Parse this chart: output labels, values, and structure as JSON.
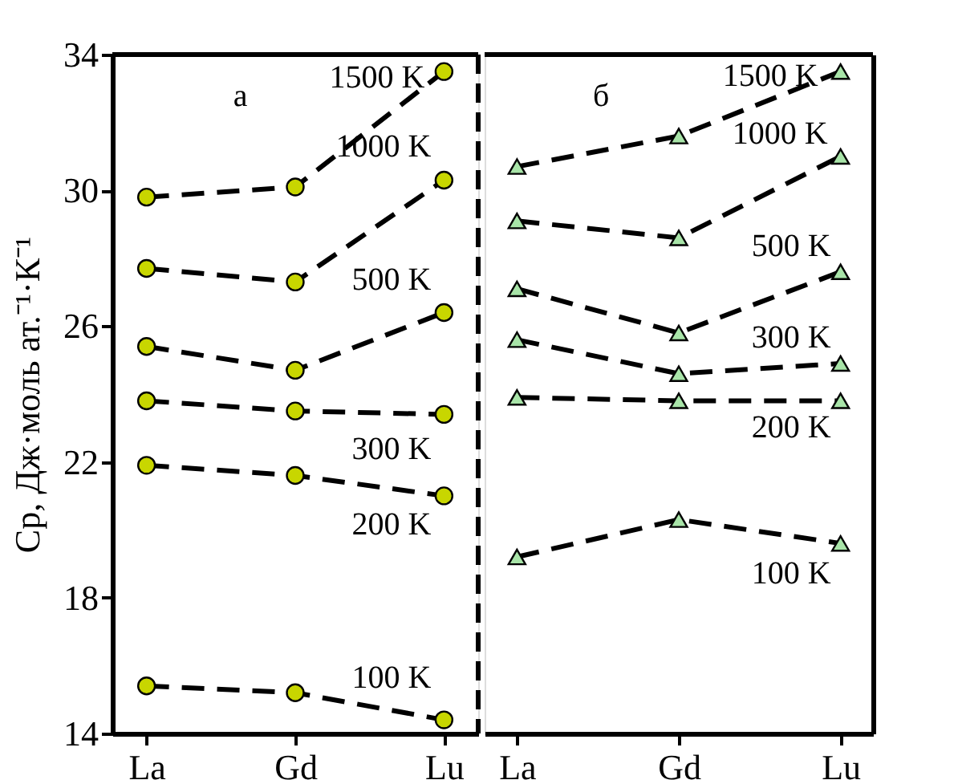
{
  "chart_data": [
    {
      "type": "line",
      "ylabel": "Ср, Дж·моль ат.⁻¹·К⁻¹",
      "categories": [
        "La",
        "Gd",
        "Lu"
      ],
      "ylim": [
        14,
        34
      ],
      "yticks": [
        14,
        18,
        22,
        26,
        30,
        34
      ],
      "marker": "circle",
      "line_style": "dashed",
      "grid": false,
      "annotations": [
        "а"
      ],
      "series": [
        {
          "name": "1500 K",
          "color": "#c8d600",
          "values": [
            29.8,
            30.1,
            33.5
          ]
        },
        {
          "name": "1000 K",
          "color": "#c8d600",
          "values": [
            27.7,
            27.3,
            30.3
          ]
        },
        {
          "name": "500 K",
          "color": "#c8d600",
          "values": [
            25.4,
            24.7,
            26.4
          ]
        },
        {
          "name": "300 K",
          "color": "#c8d600",
          "values": [
            23.8,
            23.5,
            23.4
          ]
        },
        {
          "name": "200 K",
          "color": "#c8d600",
          "values": [
            21.9,
            21.6,
            21.0
          ]
        },
        {
          "name": "100 K",
          "color": "#c8d600",
          "values": [
            15.4,
            15.2,
            14.4
          ]
        }
      ]
    },
    {
      "type": "line",
      "categories": [
        "La",
        "Gd",
        "Lu"
      ],
      "ylim": [
        14,
        34
      ],
      "tick_labels": "x",
      "marker": "triangle",
      "line_style": "dashed",
      "grid": false,
      "annotations": [
        "б"
      ],
      "series": [
        {
          "name": "1500 K",
          "color": "#a8e4a8",
          "values": [
            30.7,
            31.6,
            33.5
          ]
        },
        {
          "name": "1000 K",
          "color": "#a8e4a8",
          "values": [
            29.1,
            28.6,
            31.0
          ]
        },
        {
          "name": "500 K",
          "color": "#a8e4a8",
          "values": [
            27.1,
            25.8,
            27.6
          ]
        },
        {
          "name": "300 K",
          "color": "#a8e4a8",
          "values": [
            25.6,
            24.6,
            24.9
          ]
        },
        {
          "name": "200 K",
          "color": "#a8e4a8",
          "values": [
            23.9,
            23.8,
            23.8
          ]
        },
        {
          "name": "100 K",
          "color": "#a8e4a8",
          "values": [
            19.2,
            20.3,
            19.6
          ]
        }
      ]
    }
  ]
}
